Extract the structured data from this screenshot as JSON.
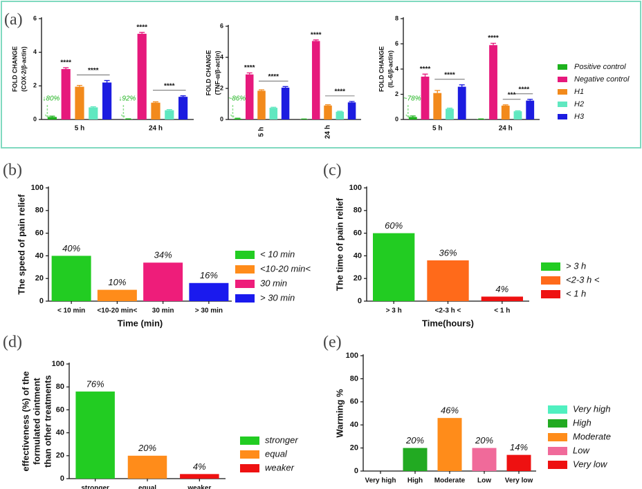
{
  "chart_data": [
    {
      "type": "grouped_bar",
      "panel_label": "(a)",
      "categories": [
        "5 h",
        "24 h"
      ],
      "series": [
        {
          "name": "Positive control",
          "color": "#1db21d"
        },
        {
          "name": "Negative control",
          "color": "#e6197c"
        },
        {
          "name": "H1",
          "color": "#f28a1c"
        },
        {
          "name": "H2",
          "color": "#60e8c0"
        },
        {
          "name": "H3",
          "color": "#1c1ce0"
        }
      ],
      "subplots": [
        {
          "ylabel": [
            "FOLD CHANGE",
            "(COX-2/β-actin)"
          ],
          "ylim": [
            0,
            6
          ],
          "yticks": [
            0,
            2,
            4,
            6
          ],
          "data": [
            {
              "values": [
                0.15,
                0.02
              ],
              "errors": [
                0.05,
                0.02
              ]
            },
            {
              "values": [
                3.0,
                5.1
              ],
              "errors": [
                0.08,
                0.08
              ]
            },
            {
              "values": [
                1.95,
                1.0
              ],
              "errors": [
                0.08,
                0.05
              ]
            },
            {
              "values": [
                0.72,
                0.55
              ],
              "errors": [
                0.04,
                0.04
              ]
            },
            {
              "values": [
                2.2,
                1.35
              ],
              "errors": [
                0.12,
                0.06
              ]
            }
          ],
          "annotations": [
            "****",
            "****",
            "****",
            "****",
            "↓80%",
            "↓92%"
          ]
        },
        {
          "ylabel": [
            "FOLD CHANGE",
            "(TNF-α/β-actin)"
          ],
          "ylim": [
            0,
            6
          ],
          "yticks": [
            0,
            2,
            4,
            6
          ],
          "data": [
            {
              "values": [
                0.05,
                0.02
              ],
              "errors": [
                0.03,
                0.01
              ]
            },
            {
              "values": [
                2.9,
                5.05
              ],
              "errors": [
                0.1,
                0.07
              ]
            },
            {
              "values": [
                1.85,
                0.9
              ],
              "errors": [
                0.06,
                0.05
              ]
            },
            {
              "values": [
                0.75,
                0.5
              ],
              "errors": [
                0.04,
                0.03
              ]
            },
            {
              "values": [
                2.05,
                1.1
              ],
              "errors": [
                0.07,
                0.06
              ]
            }
          ],
          "annotations": [
            "****",
            "****",
            "****",
            "****",
            "~86%"
          ]
        },
        {
          "ylabel": [
            "FOLD CHANGE",
            "(IL-6/β-actin)"
          ],
          "ylim": [
            0,
            8
          ],
          "yticks": [
            0,
            2,
            4,
            6,
            8
          ],
          "data": [
            {
              "values": [
                0.2,
                0.03
              ],
              "errors": [
                0.08,
                0.02
              ]
            },
            {
              "values": [
                3.4,
                5.9
              ],
              "errors": [
                0.2,
                0.15
              ]
            },
            {
              "values": [
                2.1,
                1.1
              ],
              "errors": [
                0.2,
                0.06
              ]
            },
            {
              "values": [
                0.85,
                0.65
              ],
              "errors": [
                0.05,
                0.04
              ]
            },
            {
              "values": [
                2.6,
                1.5
              ],
              "errors": [
                0.15,
                0.1
              ]
            }
          ],
          "annotations": [
            "****",
            "****",
            "****",
            "***",
            "****",
            "~78%"
          ]
        }
      ]
    },
    {
      "type": "bar",
      "panel_label": "(b)",
      "categories": [
        "< 10 min",
        "<10-20 min<",
        "30 min",
        "> 30 min"
      ],
      "values": [
        40,
        10,
        34,
        16
      ],
      "value_labels": [
        "40%",
        "10%",
        "34%",
        "16%"
      ],
      "colors": [
        "#22cc22",
        "#ff8c1a",
        "#ee1d7a",
        "#1a1aee"
      ],
      "ylabel": [
        "The speed of pain relief"
      ],
      "xlabel": "Time (min)",
      "ylim": [
        0,
        100
      ],
      "yticks": [
        0,
        20,
        40,
        60,
        80,
        100
      ]
    },
    {
      "type": "bar",
      "panel_label": "(c)",
      "categories": [
        "> 3 h",
        "<2-3 h <",
        "< 1 h"
      ],
      "values": [
        60,
        36,
        4
      ],
      "value_labels": [
        "60%",
        "36%",
        "4%"
      ],
      "colors": [
        "#22cc22",
        "#ff6a1a",
        "#ee1111"
      ],
      "ylabel": [
        "The time of pain relief"
      ],
      "xlabel": "Time(hours)",
      "ylim": [
        0,
        100
      ],
      "yticks": [
        0,
        20,
        40,
        60,
        80,
        100
      ]
    },
    {
      "type": "bar",
      "panel_label": "(d)",
      "categories": [
        "stronger",
        "equal",
        "weaker"
      ],
      "values": [
        76,
        20,
        4
      ],
      "value_labels": [
        "76%",
        "20%",
        "4%"
      ],
      "colors": [
        "#22cc22",
        "#ff8c1a",
        "#ee1111"
      ],
      "ylabel": [
        "effectiveness (%) of the",
        "formulated ointment",
        "than other treatments"
      ],
      "ylim": [
        0,
        100
      ],
      "yticks": [
        0,
        20,
        40,
        60,
        80,
        100
      ]
    },
    {
      "type": "bar",
      "panel_label": "(e)",
      "categories": [
        "Very high",
        "High",
        "Moderate",
        "Low",
        "Very low"
      ],
      "values": [
        0,
        20,
        46,
        20,
        14
      ],
      "value_labels": [
        null,
        "20%",
        "46%",
        "20%",
        "14%"
      ],
      "colors": [
        "#50f0c0",
        "#22aa22",
        "#ff8c1a",
        "#f06a9a",
        "#ee1111"
      ],
      "ylabel": [
        "Warming %"
      ],
      "ylim": [
        0,
        100
      ],
      "yticks": [
        0,
        20,
        40,
        60,
        80,
        100
      ]
    }
  ]
}
